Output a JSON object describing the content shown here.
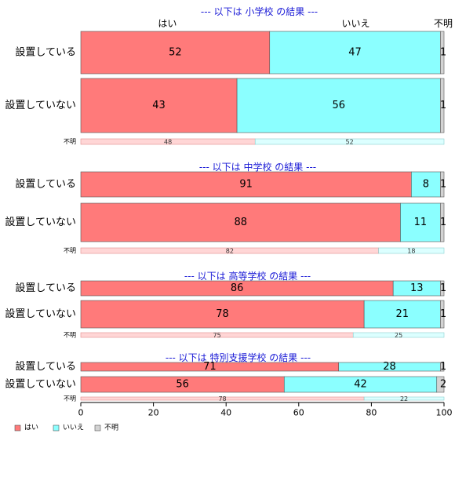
{
  "chart_data": {
    "type": "bar",
    "stacked": true,
    "orientation": "horizontal",
    "xlim": [
      0,
      100
    ],
    "x_ticks": [
      0,
      20,
      40,
      60,
      80,
      100
    ],
    "series_names": [
      "はい",
      "いいえ",
      "不明"
    ],
    "colors": [
      "#ff7a7a",
      "#8bffff",
      "#d3d3d3"
    ],
    "column_headers": [
      "はい",
      "いいえ",
      "不明"
    ],
    "legend": {
      "placement": "bottom-left",
      "labels": [
        "はい",
        "いいえ",
        "不明"
      ]
    },
    "panels": [
      {
        "title": "--- 以下は 小学校 の結果 ---",
        "rows": [
          {
            "label": "設置している",
            "values": [
              52,
              47,
              1
            ]
          },
          {
            "label": "設置していない",
            "values": [
              43,
              56,
              1
            ]
          },
          {
            "label": "不明",
            "small": true,
            "values": [
              48,
              52
            ]
          }
        ]
      },
      {
        "title": "--- 以下は 中学校 の結果 ---",
        "rows": [
          {
            "label": "設置している",
            "values": [
              91,
              8,
              1
            ]
          },
          {
            "label": "設置していない",
            "values": [
              88,
              11,
              1
            ]
          },
          {
            "label": "不明",
            "small": true,
            "values": [
              82,
              18
            ]
          }
        ]
      },
      {
        "title": "--- 以下は 高等学校 の結果 ---",
        "rows": [
          {
            "label": "設置している",
            "values": [
              86,
              13,
              1
            ]
          },
          {
            "label": "設置していない",
            "values": [
              78,
              21,
              1
            ]
          },
          {
            "label": "不明",
            "small": true,
            "values": [
              75,
              25
            ]
          }
        ]
      },
      {
        "title": "--- 以下は 特別支援学校 の結果 ---",
        "rows": [
          {
            "label": "設置している",
            "values": [
              71,
              28,
              1
            ]
          },
          {
            "label": "設置していない",
            "values": [
              56,
              42,
              2
            ]
          },
          {
            "label": "不明",
            "small": true,
            "values": [
              78,
              22
            ]
          }
        ]
      }
    ]
  }
}
